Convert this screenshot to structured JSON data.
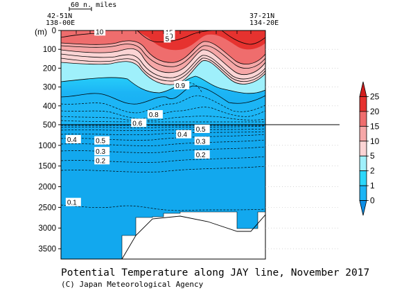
{
  "chart_data": {
    "type": "section-contour",
    "title": "Potential Temperature along JAY line, November 2017",
    "credit": "(C) Japan Meteorological Agency",
    "y_unit": "(m)",
    "scale_bar_label": "60 n. miles",
    "x_end_labels": {
      "left": [
        "42-51N",
        "138-00E"
      ],
      "right": [
        "37-21N",
        "134-20E"
      ]
    },
    "y_ticks_upper": [
      0,
      100,
      200,
      300,
      400,
      500
    ],
    "y_ticks_lower": [
      1000,
      1500,
      2000,
      2500,
      3000,
      3500
    ],
    "upper_ylim": [
      0,
      500
    ],
    "lower_ylim": [
      500,
      3750
    ],
    "colorbar": {
      "labels": [
        "0",
        "1",
        "2",
        "5",
        "10",
        "15",
        "20",
        "25"
      ],
      "colors": [
        "#0d8fe6",
        "#1cb5f5",
        "#2bd7fb",
        "#9ff0fb",
        "#fbd4d4",
        "#f6a7a7",
        "#ef6d6d",
        "#e6322f",
        "#d21e1e"
      ]
    },
    "contour_labels": [
      {
        "text": "15",
        "x": 0.51,
        "depth": 10
      },
      {
        "text": "10",
        "x": 0.51,
        "depth": 28
      },
      {
        "text": "5",
        "x": 0.51,
        "depth": 42
      },
      {
        "text": "10",
        "x": 0.17,
        "depth": 5
      },
      {
        "text": "0.9",
        "x": 0.56,
        "depth": 290
      },
      {
        "text": "0.8",
        "x": 0.43,
        "depth": 445
      },
      {
        "text": "0.6",
        "x": 0.35,
        "depth": 490
      },
      {
        "text": "0.4",
        "x": 0.03,
        "depth": 850
      },
      {
        "text": "0.5",
        "x": 0.17,
        "depth": 880
      },
      {
        "text": "0.4",
        "x": 0.57,
        "depth": 730
      },
      {
        "text": "0.5",
        "x": 0.66,
        "depth": 600
      },
      {
        "text": "0.3",
        "x": 0.17,
        "depth": 1140
      },
      {
        "text": "0.3",
        "x": 0.66,
        "depth": 890
      },
      {
        "text": "0.2",
        "x": 0.17,
        "depth": 1360
      },
      {
        "text": "0.2",
        "x": 0.66,
        "depth": 1220
      },
      {
        "text": "0.1",
        "x": 0.03,
        "depth": 2370
      }
    ]
  }
}
